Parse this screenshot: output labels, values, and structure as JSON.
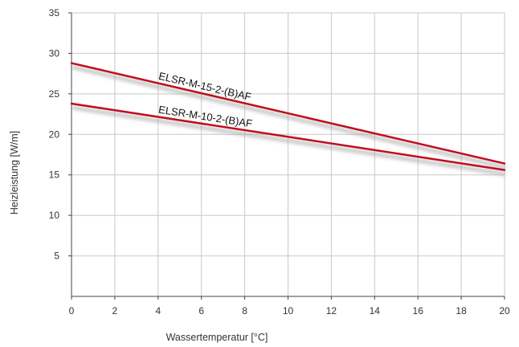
{
  "chart_data": {
    "type": "line",
    "title": "",
    "xlabel": "Wassertemperatur [°C]",
    "ylabel": "Heizleistung [W/m]",
    "xlim": [
      0,
      20
    ],
    "ylim": [
      0,
      35
    ],
    "xticks": [
      0,
      2,
      4,
      6,
      8,
      10,
      12,
      14,
      16,
      18,
      20
    ],
    "yticks": [
      5,
      10,
      15,
      20,
      25,
      30,
      35
    ],
    "grid": true,
    "legend": "none",
    "series": [
      {
        "name": "ELSR-M-15-2-(B)AF",
        "x": [
          0,
          20
        ],
        "y": [
          28.8,
          16.4
        ],
        "color": "#c00d1e"
      },
      {
        "name": "ELSR-M-10-2-(B)AF",
        "x": [
          0,
          20
        ],
        "y": [
          23.8,
          15.6
        ],
        "color": "#c00d1e"
      }
    ]
  }
}
